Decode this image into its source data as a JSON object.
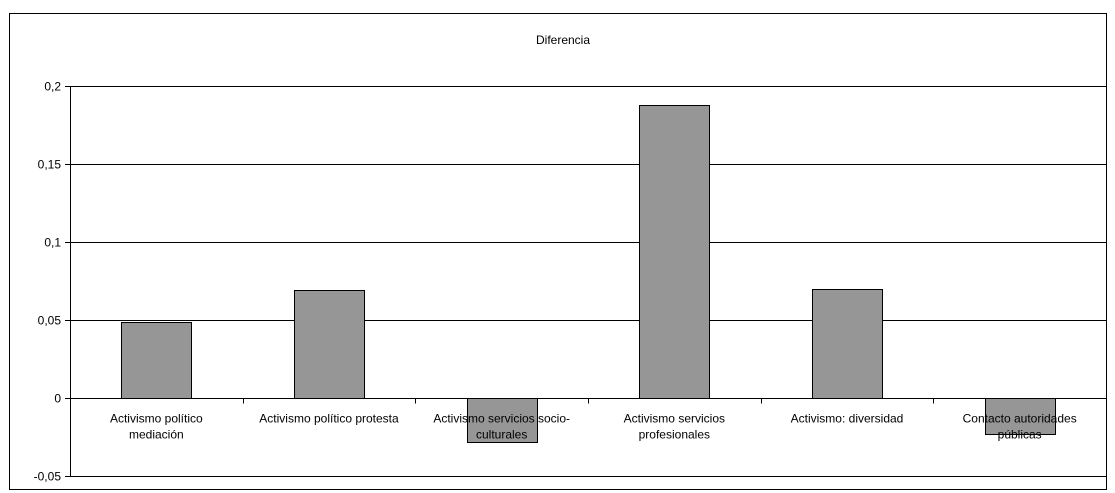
{
  "chart_data": {
    "type": "bar",
    "title": "Diferencia",
    "xlabel": "",
    "ylabel": "",
    "ylim": [
      -0.05,
      0.2
    ],
    "yticks": [
      "0,2",
      "0,15",
      "0,1",
      "0,05",
      "0",
      "-0,05"
    ],
    "ytick_values": [
      0.2,
      0.15,
      0.1,
      0.05,
      0,
      -0.05
    ],
    "categories": [
      [
        "Activismo político",
        "mediación"
      ],
      [
        "Activismo político protesta"
      ],
      [
        "Activismo servicios socio-",
        "culturales"
      ],
      [
        "Activismo servicios",
        "profesionales"
      ],
      [
        "Activismo: diversidad"
      ],
      [
        "Contacto autoridades",
        "públicas"
      ]
    ],
    "values": [
      0.049,
      0.069,
      -0.028,
      0.188,
      0.07,
      -0.023
    ],
    "grid": true,
    "colors": {
      "bar_fill": "#969696",
      "bar_stroke": "#000000",
      "grid": "#000000",
      "background": "#ffffff"
    }
  }
}
